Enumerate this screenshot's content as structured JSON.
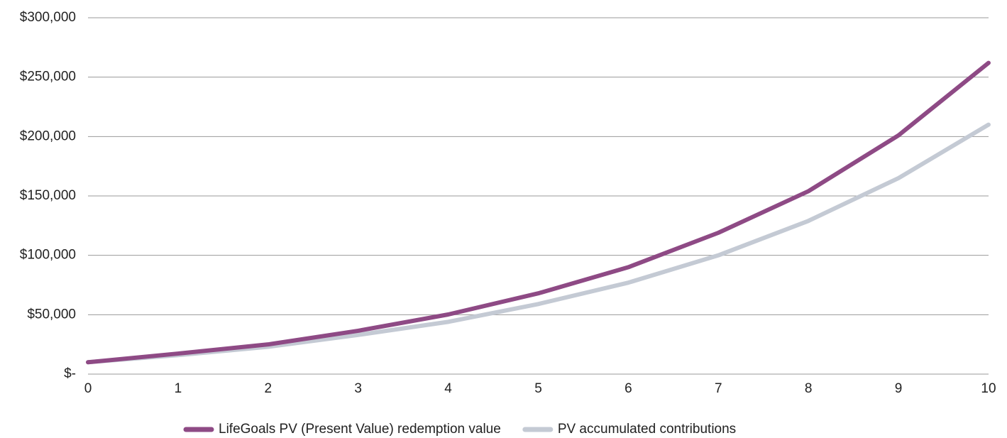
{
  "chart_data": {
    "type": "line",
    "x": [
      0,
      1,
      2,
      3,
      4,
      5,
      6,
      7,
      8,
      9,
      10
    ],
    "xlim": [
      0,
      10
    ],
    "xticks": [
      0,
      1,
      2,
      3,
      4,
      5,
      6,
      7,
      8,
      9,
      10
    ],
    "ylim": [
      0,
      300000
    ],
    "yticks": [
      {
        "value": 0,
        "label": "$-"
      },
      {
        "value": 50000,
        "label": "$50,000"
      },
      {
        "value": 100000,
        "label": "$100,000"
      },
      {
        "value": 150000,
        "label": "$150,000"
      },
      {
        "value": 200000,
        "label": "$200,000"
      },
      {
        "value": 250000,
        "label": "$250,000"
      },
      {
        "value": 300000,
        "label": "$300,000"
      }
    ],
    "grid": true,
    "legend": "bottom",
    "series": [
      {
        "name": "LifeGoals PV (Present Value) redemption value",
        "color": "#8e4a85",
        "values": [
          10000,
          17300,
          25000,
          36500,
          50200,
          68000,
          90000,
          119000,
          154000,
          201000,
          262000
        ]
      },
      {
        "name": "PV accumulated contributions",
        "color": "#c4cad4",
        "values": [
          10000,
          16000,
          23000,
          33000,
          44000,
          59000,
          77000,
          100000,
          129000,
          165000,
          210000
        ]
      }
    ]
  }
}
